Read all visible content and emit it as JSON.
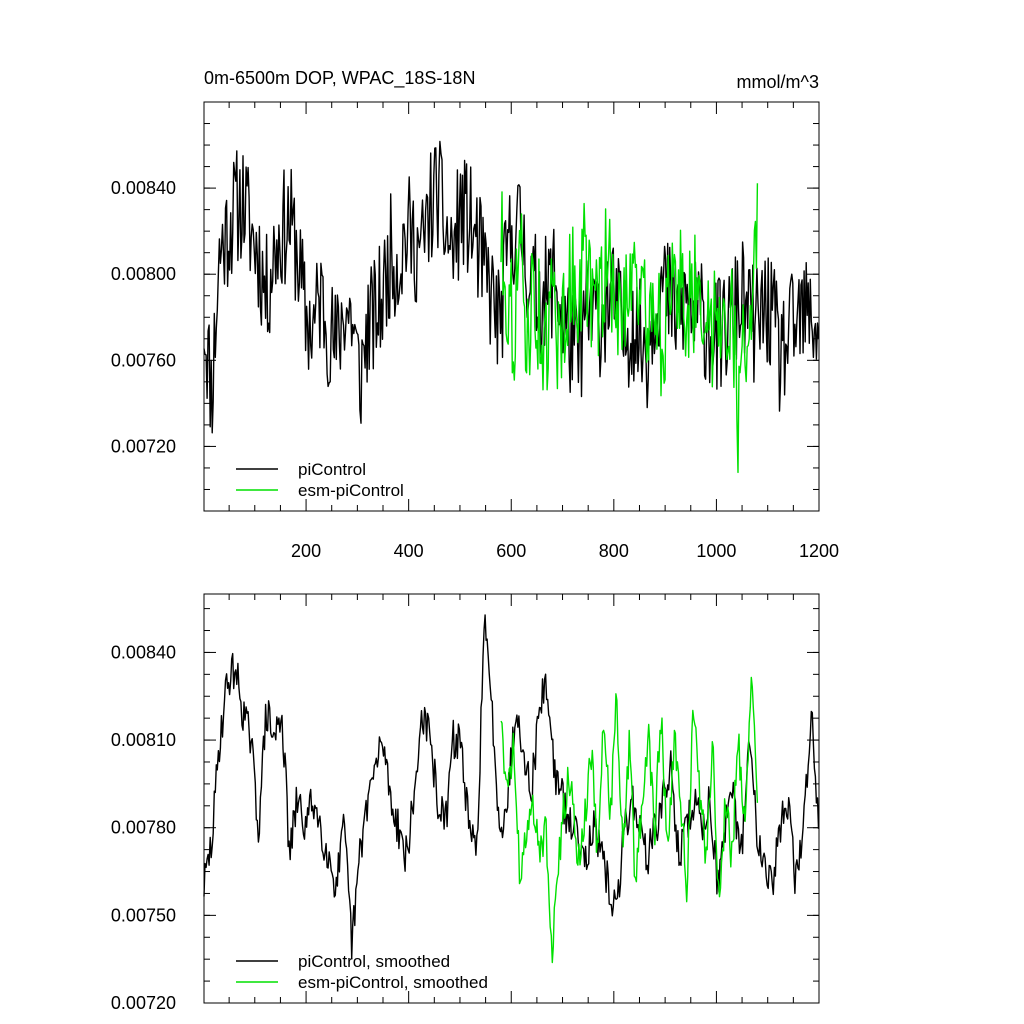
{
  "chart_data": [
    {
      "type": "line",
      "title": "0m-6500m DOP, WPAC_18S-18N",
      "units": "mmol/m^3",
      "xlabel": "",
      "ylabel": "",
      "xlim": [
        1,
        1200
      ],
      "ylim": [
        0.0069,
        0.0088
      ],
      "xticks": [
        200,
        400,
        600,
        800,
        1000,
        1200
      ],
      "xtick_labels": [
        "200",
        "400",
        "600",
        "800",
        "1000",
        "1200"
      ],
      "yticks": [
        0.0072,
        0.0076,
        0.008,
        0.0084
      ],
      "ytick_labels": [
        "0.00720",
        "0.00760",
        "0.00800",
        "0.00840"
      ],
      "grid": false,
      "legend_position": "bottom-left",
      "series": [
        {
          "name": "piControl",
          "color": "#000000",
          "x_start": 1,
          "x_end": 1200,
          "approx_values": [
            0.0078,
            0.00745,
            0.0081,
            0.0082,
            0.0083,
            0.00835,
            0.0082,
            0.0081,
            0.0079,
            0.0081,
            0.0082,
            0.00825,
            0.0081,
            0.0078,
            0.00775,
            0.0079,
            0.00775,
            0.00765,
            0.00785,
            0.0078,
            0.0075,
            0.00775,
            0.0078,
            0.0079,
            0.0081,
            0.00805,
            0.0082,
            0.00815,
            0.0081,
            0.0083,
            0.0084,
            0.0082,
            0.0081,
            0.0083,
            0.00825,
            0.00815,
            0.008,
            0.0079,
            0.00775,
            0.0081,
            0.00825,
            0.00815,
            0.00795,
            0.0079,
            0.0079,
            0.008,
            0.0078,
            0.0077,
            0.0076,
            0.0078,
            0.0078,
            0.0078,
            0.0079,
            0.00785,
            0.0077,
            0.0078,
            0.0077,
            0.00765,
            0.0079,
            0.00795,
            0.00785,
            0.0078,
            0.0079,
            0.0078,
            0.0078,
            0.00775,
            0.0077,
            0.00775,
            0.0078,
            0.0079,
            0.0078,
            0.00775,
            0.00785,
            0.0078,
            0.0076,
            0.0077,
            0.00775,
            0.0078,
            0.0078,
            0.00775
          ],
          "legend_label": "piControl"
        },
        {
          "name": "esm-piControl",
          "color": "#00e000",
          "x_start": 580,
          "x_end": 1080,
          "approx_values": [
            0.0082,
            0.0079,
            0.00775,
            0.0081,
            0.0077,
            0.0079,
            0.0078,
            0.0076,
            0.0079,
            0.0077,
            0.0078,
            0.008,
            0.0079,
            0.0081,
            0.0079,
            0.0078,
            0.008,
            0.0081,
            0.0077,
            0.0079,
            0.008,
            0.0081,
            0.0078,
            0.0078,
            0.0079,
            0.0077,
            0.0078,
            0.0079,
            0.008,
            0.0078,
            0.0079,
            0.00805,
            0.0077,
            0.00775,
            0.0079,
            0.0078,
            0.00785,
            0.0073,
            0.00775,
            0.0078,
            0.0082
          ],
          "legend_label": "esm-piControl"
        }
      ]
    },
    {
      "type": "line",
      "title": "",
      "xlabel": "",
      "ylabel": "",
      "xlim": [
        1,
        1200
      ],
      "ylim": [
        0.0072,
        0.0086
      ],
      "xticks": [
        200,
        400,
        600,
        800,
        1000,
        1200
      ],
      "yticks": [
        0.0072,
        0.0075,
        0.0078,
        0.0081,
        0.0084
      ],
      "ytick_labels": [
        "0.00720",
        "0.00750",
        "0.00780",
        "0.00810",
        "0.00840"
      ],
      "grid": false,
      "legend_position": "bottom-left",
      "series": [
        {
          "name": "piControl, smoothed",
          "color": "#000000",
          "x_start": 1,
          "x_end": 1200,
          "approx_values": [
            0.0076,
            0.00775,
            0.0081,
            0.0083,
            0.00835,
            0.0082,
            0.0081,
            0.0078,
            0.0082,
            0.0081,
            0.0082,
            0.0077,
            0.0079,
            0.0078,
            0.0079,
            0.0078,
            0.0077,
            0.0076,
            0.0078,
            0.0074,
            0.0077,
            0.0079,
            0.008,
            0.0081,
            0.0079,
            0.0078,
            0.0077,
            0.0079,
            0.0082,
            0.0081,
            0.0079,
            0.0078,
            0.0081,
            0.0081,
            0.0078,
            0.0077,
            0.0085,
            0.0082,
            0.0078,
            0.0079,
            0.0082,
            0.0081,
            0.0079,
            0.0082,
            0.0083,
            0.008,
            0.0079,
            0.0078,
            0.0078,
            0.0077,
            0.0078,
            0.0077,
            0.0076,
            0.0075,
            0.0078,
            0.0079,
            0.0078,
            0.0077,
            0.0078,
            0.0079,
            0.008,
            0.0077,
            0.0078,
            0.0079,
            0.0078,
            0.0079,
            0.0076,
            0.0078,
            0.0079,
            0.0077,
            0.0081,
            0.0078,
            0.0077,
            0.0076,
            0.0078,
            0.0079,
            0.0076,
            0.0078,
            0.0082,
            0.0078
          ],
          "legend_label": "piControl, smoothed"
        },
        {
          "name": "esm-piControl, smoothed",
          "color": "#00e000",
          "x_start": 580,
          "x_end": 1080,
          "approx_values": [
            0.0082,
            0.0079,
            0.0081,
            0.0076,
            0.0078,
            0.0079,
            0.0077,
            0.0078,
            0.0074,
            0.0077,
            0.0079,
            0.008,
            0.0077,
            0.0078,
            0.0081,
            0.0077,
            0.0082,
            0.0078,
            0.0083,
            0.0077,
            0.0081,
            0.0076,
            0.0079,
            0.0081,
            0.0078,
            0.0082,
            0.0077,
            0.0081,
            0.0079,
            0.0076,
            0.0082,
            0.0079,
            0.0077,
            0.0081,
            0.0075,
            0.0079,
            0.0077,
            0.0081,
            0.0078,
            0.0083,
            0.0079
          ],
          "legend_label": "esm-piControl, smoothed"
        }
      ]
    }
  ]
}
